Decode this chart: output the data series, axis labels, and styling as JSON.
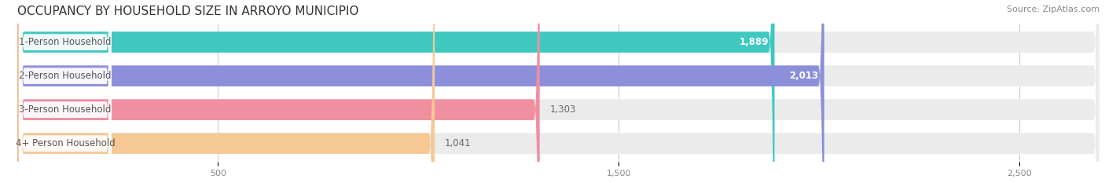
{
  "title": "OCCUPANCY BY HOUSEHOLD SIZE IN ARROYO MUNICIPIO",
  "source": "Source: ZipAtlas.com",
  "categories": [
    "1-Person Household",
    "2-Person Household",
    "3-Person Household",
    "4+ Person Household"
  ],
  "values": [
    1889,
    2013,
    1303,
    1041
  ],
  "bar_colors": [
    "#3ec8c0",
    "#8c8fda",
    "#f08fa0",
    "#f5c896"
  ],
  "bar_bg_color": "#ebebeb",
  "value_inside_color": [
    "#ffffff",
    "#ffffff",
    "#666666",
    "#666666"
  ],
  "xlim": [
    0,
    2700
  ],
  "xticks": [
    500,
    1500,
    2500
  ],
  "label_fontsize": 8.5,
  "value_fontsize": 8.5,
  "title_fontsize": 11,
  "source_fontsize": 8,
  "bar_height": 0.62,
  "background_color": "#ffffff",
  "label_text_color": "#555555",
  "title_color": "#333333"
}
